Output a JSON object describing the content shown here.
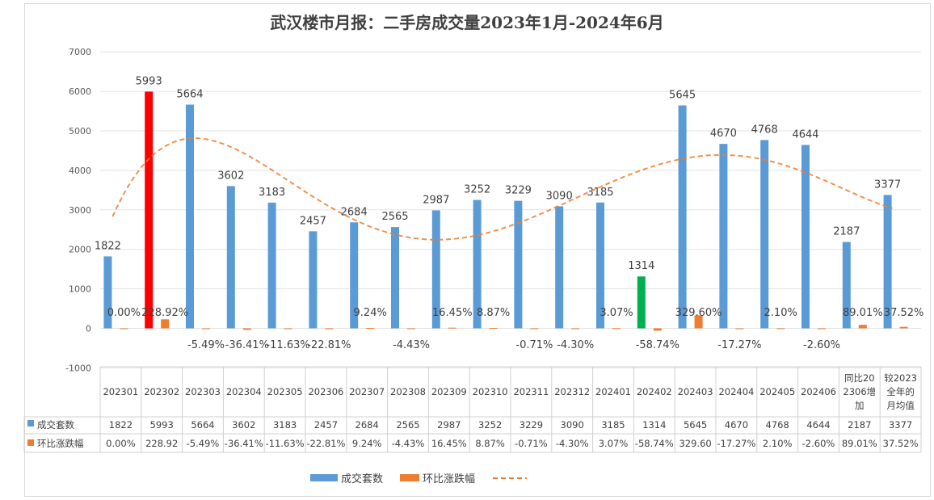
{
  "title": "武汉楼市月报：二手房成交量2023年1月-2024年6月",
  "colors": {
    "bar": "#5b9bd5",
    "pct": "#ed7d31",
    "highlight_feb": "#ff0000",
    "highlight_low": "#00b050",
    "trend": "#ed7d31"
  },
  "chart_data": {
    "type": "bar",
    "title": "武汉楼市月报：二手房成交量2023年1月-2024年6月",
    "categories": [
      "202301",
      "202302",
      "202303",
      "202304",
      "202305",
      "202306",
      "202307",
      "202308",
      "202309",
      "202310",
      "202311",
      "202312",
      "202401",
      "202402",
      "202403",
      "202404",
      "202405",
      "202406",
      "同比202306增加",
      "较2023全年的月均值"
    ],
    "category_lines": [
      [
        "202301"
      ],
      [
        "202302"
      ],
      [
        "202303"
      ],
      [
        "202304"
      ],
      [
        "202305"
      ],
      [
        "202306"
      ],
      [
        "202307"
      ],
      [
        "202308"
      ],
      [
        "202309"
      ],
      [
        "202310"
      ],
      [
        "202311"
      ],
      [
        "202312"
      ],
      [
        "202401"
      ],
      [
        "202402"
      ],
      [
        "202403"
      ],
      [
        "202404"
      ],
      [
        "202405"
      ],
      [
        "202406"
      ],
      [
        "同比20",
        "2306增",
        "加"
      ],
      [
        "较2023",
        "全年的",
        "月均值"
      ]
    ],
    "series": [
      {
        "name": "成交套数",
        "values": [
          1822,
          5993,
          5664,
          3602,
          3183,
          2457,
          2684,
          2565,
          2987,
          3252,
          3229,
          3090,
          3185,
          1314,
          5645,
          4670,
          4768,
          4644,
          2187,
          3377
        ]
      },
      {
        "name": "环比涨跌幅",
        "values": [
          0.0,
          228.92,
          -5.49,
          -36.41,
          -11.63,
          -22.81,
          9.24,
          -4.43,
          16.45,
          8.87,
          -0.71,
          -4.3,
          3.07,
          -58.74,
          329.6,
          -17.27,
          2.1,
          -2.6,
          89.01,
          37.52
        ]
      }
    ],
    "bar_labels": [
      "1822",
      "5993",
      "5664",
      "3602",
      "3183",
      "2457",
      "2684",
      "2565",
      "2987",
      "3252",
      "3229",
      "3090",
      "3185",
      "1314",
      "5645",
      "4670",
      "4768",
      "4644",
      "2187",
      "3377"
    ],
    "pct_labels": [
      "0.00%",
      "228.92%",
      "-5.49%",
      "-36.41%",
      "-11.63%",
      "-22.81%",
      "9.24%",
      "-4.43%",
      "16.45%",
      "8.87%",
      "-0.71%",
      "-4.30%",
      "3.07%",
      "-58.74%",
      "329.60%",
      "-17.27%",
      "2.10%",
      "-2.60%",
      "89.01%",
      "37.52%"
    ],
    "table_pct_labels": [
      "0.00%",
      "228.92",
      "-5.49%",
      "-36.41%",
      "-11.63%",
      "-22.81%",
      "9.24%",
      "-4.43%",
      "16.45%",
      "8.87%",
      "-0.71%",
      "-4.30%",
      "3.07%",
      "-58.74%",
      "329.60",
      "-17.27%",
      "2.10%",
      "-2.60%",
      "89.01%",
      "37.52%"
    ],
    "ylim": [
      -1000,
      7000
    ],
    "yticks": [
      -1000,
      0,
      1000,
      2000,
      3000,
      4000,
      5000,
      6000,
      7000
    ],
    "grid": true,
    "legend": "bottom",
    "trendline": "polynomial (成交套数)"
  },
  "legend": {
    "bars": "成交套数",
    "pct": "环比涨跌幅"
  }
}
